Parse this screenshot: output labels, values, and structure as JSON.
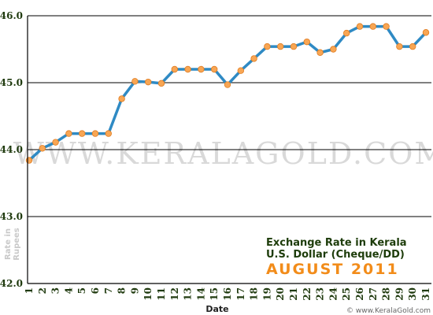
{
  "chart_data": {
    "type": "line",
    "title": [
      "Exchange Rate in Kerala",
      "U.S. Dollar (Cheque/DD)"
    ],
    "subtitle": "AUGUST 2011",
    "xlabel": "Date",
    "ylabel": [
      "Rate in",
      "Rupees"
    ],
    "watermark": "WWW.KERALAGOLD.COM",
    "footer": "© www.KeralaGold.com",
    "ylim": [
      42.0,
      46.0
    ],
    "yticks": [
      "42.0",
      "43.0",
      "44.0",
      "45.0",
      "46.0"
    ],
    "categories": [
      "1",
      "2",
      "3",
      "4",
      "5",
      "6",
      "7",
      "8",
      "9",
      "10",
      "11",
      "12",
      "13",
      "14",
      "15",
      "16",
      "17",
      "18",
      "19",
      "20",
      "21",
      "22",
      "23",
      "24",
      "25",
      "26",
      "27",
      "28",
      "29",
      "30",
      "31"
    ],
    "values": [
      43.84,
      44.02,
      44.11,
      44.24,
      44.24,
      44.24,
      44.24,
      44.76,
      45.02,
      45.01,
      44.99,
      45.2,
      45.2,
      45.2,
      45.2,
      44.97,
      45.18,
      45.36,
      45.54,
      45.54,
      45.54,
      45.61,
      45.45,
      45.5,
      45.74,
      45.84,
      45.84,
      45.84,
      45.54,
      45.54,
      45.75
    ],
    "line_color": "#2f8ac4",
    "marker_color": "#f8a654",
    "grid": true
  }
}
